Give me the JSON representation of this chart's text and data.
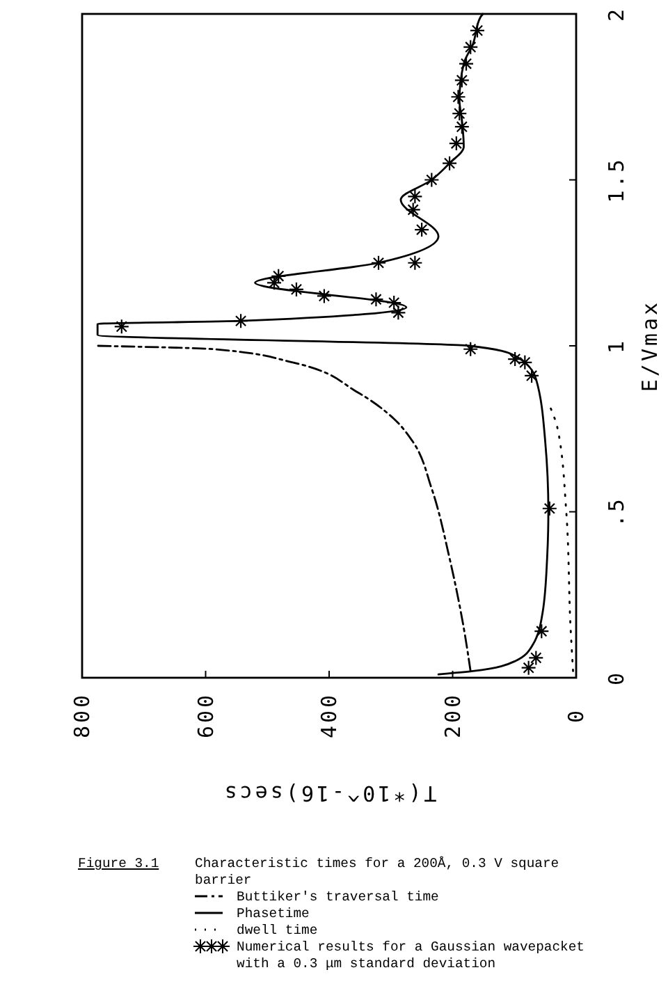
{
  "chart_data": {
    "type": "line",
    "title": "Figure 3.1",
    "subtitle": "Characteristic times for a 200Å, 0.3 V square barrier",
    "xlabel": "T(*10^-16)secs",
    "ylabel": "E/Vmax",
    "xlim": [
      800,
      0
    ],
    "ylim": [
      0,
      2
    ],
    "xticks": [
      800,
      600,
      400,
      200,
      0
    ],
    "yticks": [
      0,
      {
        "value": 0.5,
        "label": ".5"
      },
      1,
      1.5,
      2
    ],
    "grid": false,
    "legend": "bottom",
    "series": [
      {
        "name": "Buttiker's traversal time",
        "color": "#000000",
        "line_style": "dashed",
        "x": [
          171,
          182,
          205,
          234,
          264,
          295,
          354,
          459,
          588,
          775
        ],
        "values": [
          0.02,
          0.15,
          0.36,
          0.57,
          0.71,
          0.78,
          0.86,
          0.95,
          0.99,
          1.0
        ]
      },
      {
        "name": "Phasetime",
        "color": "#000000",
        "line_style": "solid",
        "x": [
          223,
          167,
          99,
          70,
          54,
          47,
          45,
          50,
          65,
          99,
          173,
          775,
          775,
          543,
          275,
          520,
          320,
          223,
          284,
          234,
          205,
          182,
          185,
          189,
          182,
          167,
          155,
          151
        ],
        "values": [
          0.01,
          0.02,
          0.05,
          0.1,
          0.2,
          0.36,
          0.5,
          0.71,
          0.9,
          0.97,
          1.0,
          1.033,
          1.066,
          1.075,
          1.116,
          1.19,
          1.25,
          1.33,
          1.44,
          1.5,
          1.55,
          1.6,
          1.68,
          1.74,
          1.85,
          1.91,
          1.99,
          2.0
        ]
      },
      {
        "name": "dwell time",
        "color": "#000000",
        "line_style": "dotted",
        "x": [
          5,
          9,
          16,
          30,
          43
        ],
        "values": [
          0.02,
          0.15,
          0.5,
          0.75,
          0.82
        ]
      },
      {
        "name": "Numerical results for a Gaussian wavepacket with a 0.3 μm standard deviation",
        "type": "scatter",
        "color": "#000000",
        "marker": "cross",
        "x": [
          77,
          65,
          56,
          43,
          72,
          83,
          99,
          171,
          736,
          543,
          288,
          295,
          324,
          408,
          453,
          489,
          482,
          320,
          261,
          250,
          264,
          261,
          234,
          205,
          194,
          185,
          189,
          191,
          185,
          178,
          171,
          160
        ],
        "values": [
          0.03,
          0.06,
          0.14,
          0.51,
          0.91,
          0.95,
          0.96,
          0.99,
          1.058,
          1.075,
          1.1,
          1.13,
          1.14,
          1.15,
          1.17,
          1.19,
          1.21,
          1.25,
          1.25,
          1.35,
          1.41,
          1.45,
          1.5,
          1.55,
          1.61,
          1.66,
          1.7,
          1.75,
          1.8,
          1.85,
          1.9,
          1.95
        ]
      }
    ]
  }
}
